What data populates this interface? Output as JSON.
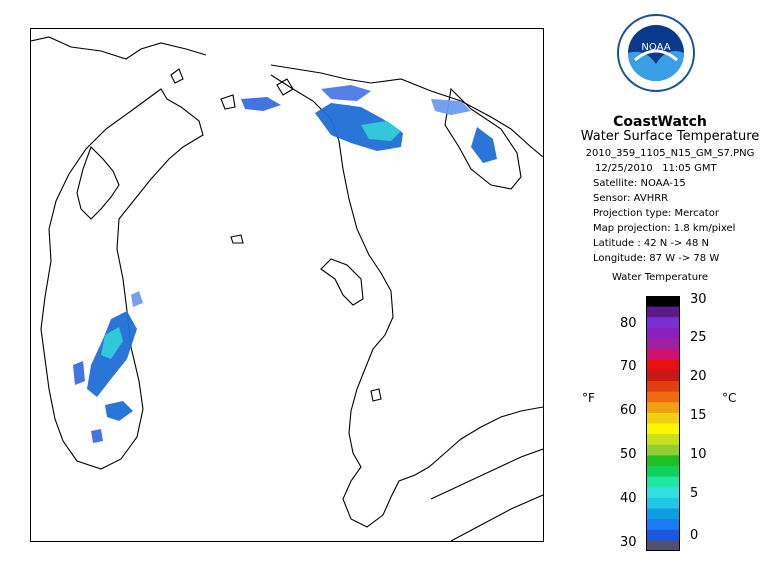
{
  "map": {
    "region": "Lake Michigan and Lake Huron",
    "colors": {
      "land": "#ffffff",
      "coast": "#000000",
      "cold_blue": "#1f6fd6",
      "cyan": "#27c7d9",
      "light_blue": "#6a9df0"
    }
  },
  "logo": {
    "text": "NOAA",
    "colors": {
      "outer": "#1a4fa0",
      "inner_top": "#0b3a8c",
      "wave": "#ffffff"
    }
  },
  "product": {
    "brand": "CoastWatch",
    "subtitle": "Water Surface Temperature",
    "filename": "2010_359_1105_N15_GM_S7.PNG",
    "date": "12/25/2010",
    "time": "11:05 GMT",
    "satellite": "Satellite: NOAA-15",
    "sensor": "Sensor: AVHRR",
    "projection_type": "Projection type:  Mercator",
    "map_projection": "Map projection: 1.8 km/pixel",
    "latitude": "Latitude : 42 N  ->  48 N",
    "longitude": "Longitude: 87 W  ->  78 W"
  },
  "scale": {
    "title": "Water Temperature",
    "unit_f": "°F",
    "unit_c": "°C",
    "f_ticks": [
      "80",
      "70",
      "60",
      "50",
      "40",
      "30"
    ],
    "c_ticks": [
      "30",
      "25",
      "20",
      "15",
      "10",
      "5",
      "0"
    ],
    "colors": [
      "#000000",
      "#5a1a8a",
      "#7a2fd0",
      "#8a1fbf",
      "#a020a0",
      "#d01070",
      "#e81010",
      "#c81818",
      "#e04010",
      "#f06a10",
      "#f0a010",
      "#f0d010",
      "#f8f800",
      "#c8e020",
      "#90d030",
      "#20c020",
      "#10d060",
      "#20e8a0",
      "#30e0e0",
      "#20c8e8",
      "#109ce0",
      "#1a7cf0",
      "#1a58e0",
      "#505070"
    ]
  }
}
